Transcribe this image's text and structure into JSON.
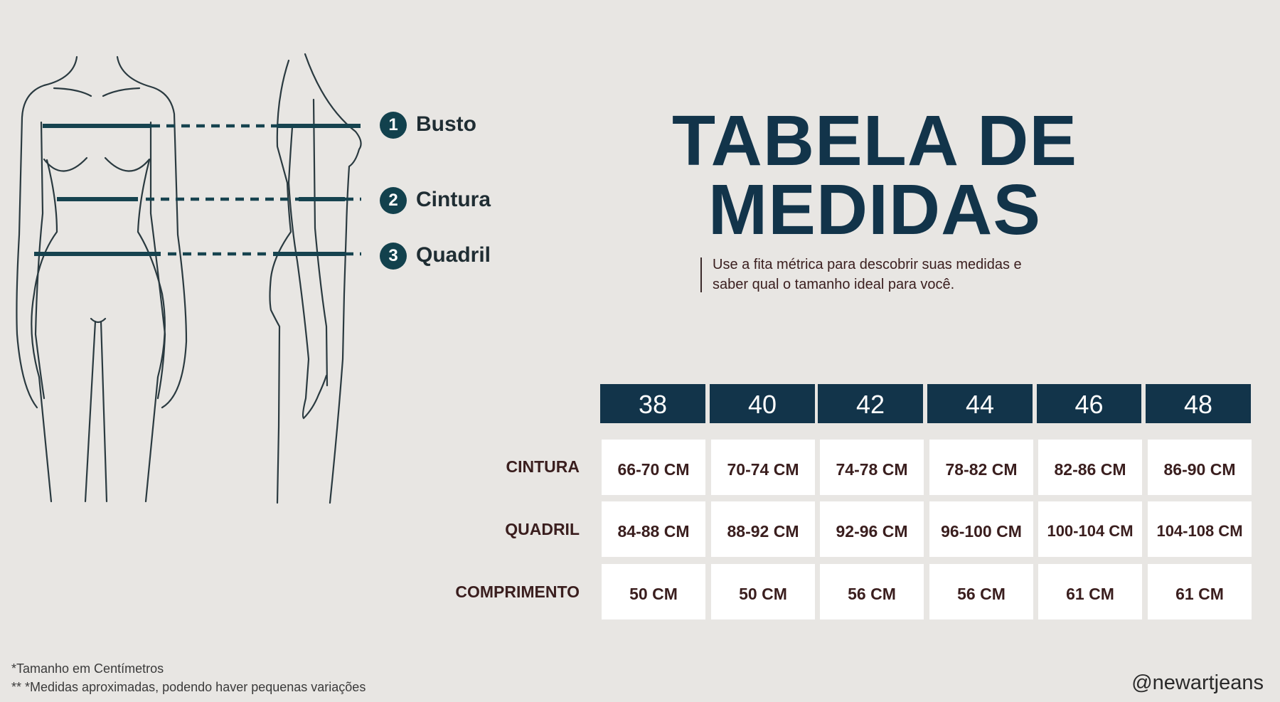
{
  "measures": [
    {
      "number": "1",
      "label": "Busto"
    },
    {
      "number": "2",
      "label": "Cintura"
    },
    {
      "number": "3",
      "label": "Quadril"
    }
  ],
  "title": {
    "line1": "TABELA DE",
    "line2": "MEDIDAS"
  },
  "subtitle": {
    "line1": "Use a fita métrica para descobrir suas medidas e",
    "line2": "saber qual o tamanho ideal para você."
  },
  "table": {
    "sizes": [
      "38",
      "40",
      "42",
      "44",
      "46",
      "48"
    ],
    "rows": [
      {
        "label": "CINTURA",
        "values": [
          "66-70 CM",
          "70-74 CM",
          "74-78 CM",
          "78-82 CM",
          "82-86 CM",
          "86-90 CM"
        ]
      },
      {
        "label": "QUADRIL",
        "values": [
          "84-88 CM",
          "88-92 CM",
          "92-96 CM",
          "96-100 CM",
          "100-104 CM",
          "104-108 CM"
        ]
      },
      {
        "label": "COMPRIMENTO",
        "values": [
          "50 CM",
          "50 CM",
          "56 CM",
          "56 CM",
          "61 CM",
          "61 CM"
        ]
      }
    ]
  },
  "footnotes": [
    "*Tamanho em Centímetros",
    "** *Medidas aproximadas, podendo haver pequenas variações"
  ],
  "handle": "@newartjeans",
  "colors": {
    "navy": "#12344a",
    "background": "#e8e6e3",
    "text": "#3a1e1e",
    "measure_line": "#16434f"
  }
}
